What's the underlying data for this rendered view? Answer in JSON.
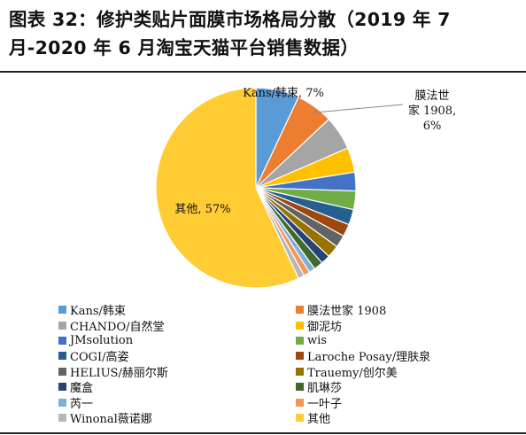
{
  "title": "图表 32：修护类贴片面膜市场格局分散（2019 年 7 月-2020 年 6 月淘宝天猫平台销售数据）",
  "chart_data": {
    "type": "pie",
    "series": [
      {
        "name": "Kans/韩束",
        "value": 7,
        "color": "#5B9BD5",
        "label": "Kans/韩束, 7%"
      },
      {
        "name": "膜法世家 1908",
        "value": 6,
        "color": "#ED7D31",
        "label": "膜法世家 1908, 6%"
      },
      {
        "name": "CHANDO/自然堂",
        "value": 5.5,
        "color": "#A5A5A5"
      },
      {
        "name": "御泥坊",
        "value": 4,
        "color": "#FFC000"
      },
      {
        "name": "JMsolution",
        "value": 3,
        "color": "#4472C4"
      },
      {
        "name": "wis",
        "value": 3,
        "color": "#70AD47"
      },
      {
        "name": "COGI/高姿",
        "value": 2.5,
        "color": "#255E91"
      },
      {
        "name": "Laroche Posay/理肤泉",
        "value": 2,
        "color": "#9E480E"
      },
      {
        "name": "HELIUS/赫丽尔斯",
        "value": 2,
        "color": "#636363"
      },
      {
        "name": "Trauemy/创尔美",
        "value": 2,
        "color": "#997300"
      },
      {
        "name": "魔盒",
        "value": 1.5,
        "color": "#264478"
      },
      {
        "name": "肌琳莎",
        "value": 1.5,
        "color": "#43682B"
      },
      {
        "name": "芮一",
        "value": 1,
        "color": "#7CAFDD"
      },
      {
        "name": "一叶子",
        "value": 1,
        "color": "#F1975A"
      },
      {
        "name": "Winonal薇诺娜",
        "value": 1,
        "color": "#B7B7B7"
      },
      {
        "name": "其他",
        "value": 57,
        "color": "#FFCD33",
        "label": "其他, 57%"
      }
    ],
    "legend": "bottom"
  }
}
